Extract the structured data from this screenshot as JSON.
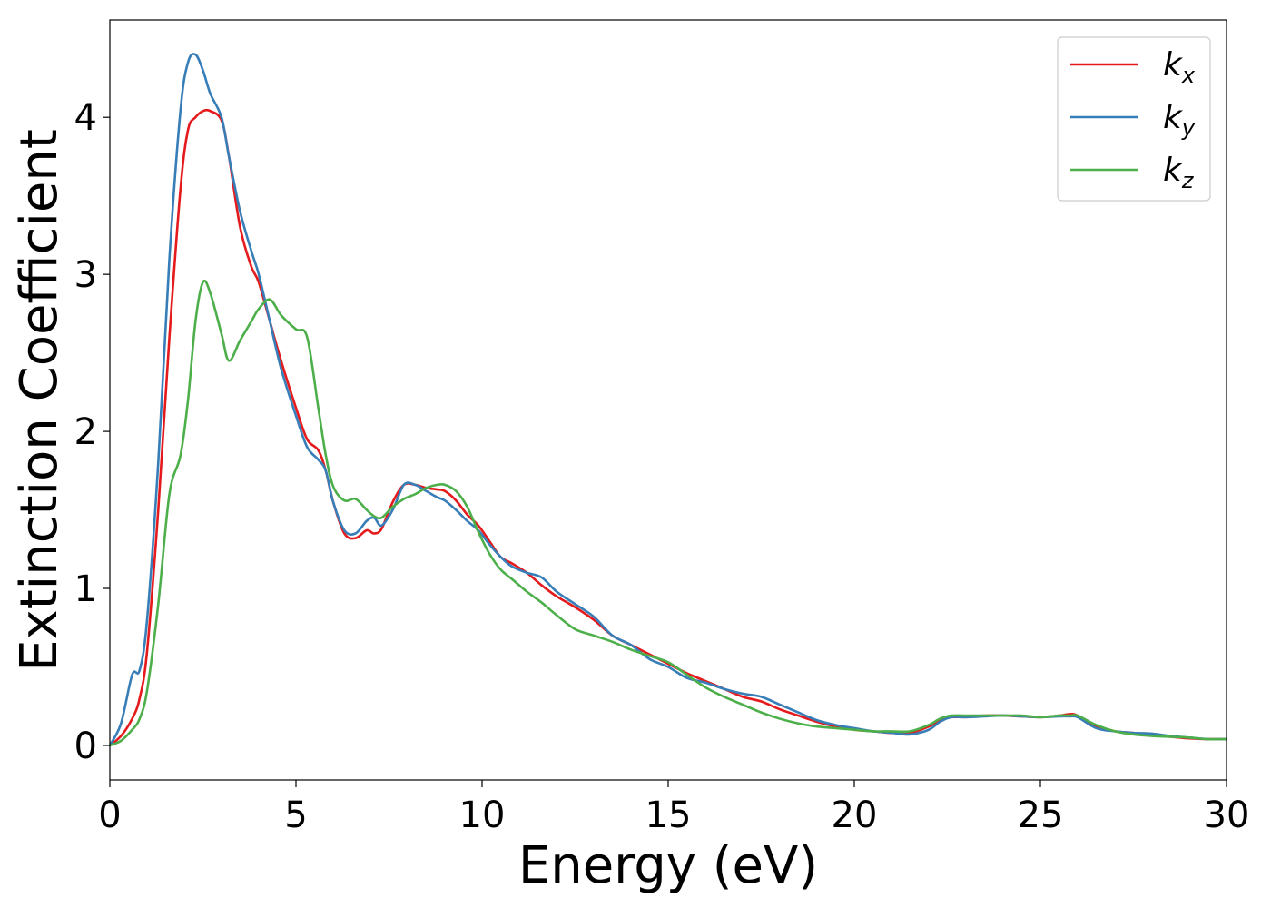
{
  "chart_data": {
    "type": "line",
    "xlabel": "Energy (eV)",
    "ylabel": "Extinction Coefficient",
    "xlim": [
      0,
      30
    ],
    "ylim": [
      -0.22,
      4.62
    ],
    "xticks": [
      0,
      5,
      10,
      15,
      20,
      25,
      30
    ],
    "yticks": [
      0,
      1,
      2,
      3,
      4
    ],
    "grid": false,
    "legend_position": "top-right",
    "x": [
      0,
      0.3,
      0.6,
      0.8,
      1.0,
      1.3,
      1.6,
      1.9,
      2.1,
      2.3,
      2.5,
      2.7,
      3.0,
      3.2,
      3.5,
      3.8,
      4.0,
      4.3,
      4.6,
      5.0,
      5.3,
      5.6,
      5.8,
      6.0,
      6.3,
      6.6,
      6.9,
      7.1,
      7.3,
      7.6,
      7.9,
      8.2,
      8.5,
      8.8,
      9.0,
      9.3,
      9.6,
      9.9,
      10.2,
      10.5,
      10.8,
      11.2,
      11.6,
      12.0,
      12.5,
      13.0,
      13.5,
      14.0,
      14.5,
      15.0,
      15.5,
      16.0,
      16.5,
      17.0,
      17.5,
      18.0,
      18.5,
      19.0,
      19.5,
      20.0,
      20.5,
      21.0,
      21.5,
      22.0,
      22.3,
      22.6,
      23.0,
      23.5,
      24.0,
      24.5,
      25.0,
      25.5,
      25.8,
      26.0,
      26.5,
      27.0,
      27.5,
      28.0,
      28.5,
      29.0,
      29.5,
      30.0
    ],
    "series": [
      {
        "name": "k_x",
        "label_base": "k",
        "label_sub": "x",
        "color": "#e41a1c",
        "values": [
          0.0,
          0.06,
          0.17,
          0.3,
          0.6,
          1.5,
          2.6,
          3.55,
          3.92,
          4.0,
          4.04,
          4.04,
          3.98,
          3.75,
          3.3,
          3.05,
          2.95,
          2.7,
          2.45,
          2.15,
          1.95,
          1.88,
          1.75,
          1.55,
          1.35,
          1.32,
          1.37,
          1.35,
          1.38,
          1.55,
          1.66,
          1.66,
          1.64,
          1.63,
          1.62,
          1.56,
          1.47,
          1.4,
          1.3,
          1.2,
          1.16,
          1.1,
          1.02,
          0.95,
          0.88,
          0.8,
          0.7,
          0.64,
          0.58,
          0.52,
          0.46,
          0.41,
          0.36,
          0.31,
          0.28,
          0.23,
          0.19,
          0.15,
          0.12,
          0.1,
          0.09,
          0.08,
          0.08,
          0.12,
          0.16,
          0.18,
          0.18,
          0.19,
          0.19,
          0.185,
          0.18,
          0.19,
          0.2,
          0.19,
          0.12,
          0.09,
          0.08,
          0.065,
          0.055,
          0.045,
          0.04,
          0.04
        ]
      },
      {
        "name": "k_y",
        "label_base": "k",
        "label_sub": "y",
        "color": "#377eb8",
        "values": [
          0.0,
          0.14,
          0.45,
          0.48,
          0.8,
          1.8,
          3.1,
          4.05,
          4.35,
          4.4,
          4.3,
          4.15,
          4.0,
          3.75,
          3.4,
          3.15,
          3.0,
          2.7,
          2.4,
          2.1,
          1.9,
          1.82,
          1.75,
          1.55,
          1.37,
          1.35,
          1.43,
          1.45,
          1.4,
          1.5,
          1.66,
          1.66,
          1.62,
          1.58,
          1.56,
          1.5,
          1.43,
          1.37,
          1.28,
          1.2,
          1.14,
          1.1,
          1.07,
          0.98,
          0.9,
          0.82,
          0.7,
          0.64,
          0.55,
          0.5,
          0.43,
          0.4,
          0.36,
          0.33,
          0.31,
          0.26,
          0.21,
          0.16,
          0.13,
          0.11,
          0.09,
          0.08,
          0.07,
          0.1,
          0.15,
          0.18,
          0.18,
          0.185,
          0.19,
          0.185,
          0.18,
          0.185,
          0.185,
          0.18,
          0.11,
          0.09,
          0.08,
          0.075,
          0.06,
          0.05,
          0.04,
          0.04
        ]
      },
      {
        "name": "k_z",
        "label_base": "k",
        "label_sub": "z",
        "color": "#4daf4a",
        "values": [
          0.0,
          0.03,
          0.1,
          0.17,
          0.35,
          0.9,
          1.6,
          1.85,
          2.2,
          2.7,
          2.95,
          2.88,
          2.62,
          2.45,
          2.58,
          2.7,
          2.78,
          2.84,
          2.74,
          2.65,
          2.6,
          2.15,
          1.85,
          1.65,
          1.56,
          1.57,
          1.5,
          1.46,
          1.45,
          1.52,
          1.57,
          1.6,
          1.64,
          1.66,
          1.66,
          1.62,
          1.52,
          1.36,
          1.22,
          1.12,
          1.06,
          0.98,
          0.91,
          0.83,
          0.74,
          0.7,
          0.66,
          0.61,
          0.57,
          0.53,
          0.45,
          0.37,
          0.31,
          0.26,
          0.21,
          0.17,
          0.14,
          0.12,
          0.11,
          0.1,
          0.09,
          0.09,
          0.09,
          0.13,
          0.17,
          0.19,
          0.19,
          0.19,
          0.19,
          0.19,
          0.18,
          0.19,
          0.19,
          0.19,
          0.13,
          0.09,
          0.07,
          0.06,
          0.055,
          0.05,
          0.04,
          0.04
        ]
      }
    ]
  }
}
